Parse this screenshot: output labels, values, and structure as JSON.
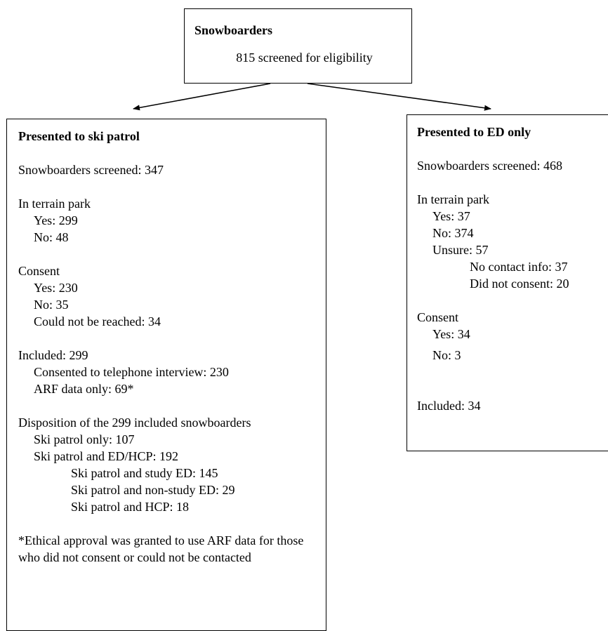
{
  "top": {
    "title": "Snowboarders",
    "screened": "815 screened for eligibility"
  },
  "left": {
    "title": "Presented to ski patrol",
    "screened": "Snowboarders screened: 347",
    "terrain_label": "In terrain park",
    "terrain_yes": "Yes: 299",
    "terrain_no": "No: 48",
    "consent_label": "Consent",
    "consent_yes": "Yes: 230",
    "consent_no": "No: 35",
    "consent_unreached": "Could not be reached: 34",
    "included": "Included: 299",
    "included_phone": "Consented to telephone interview: 230",
    "included_arf": "ARF data only: 69*",
    "disposition_label": "Disposition of the 299 included snowboarders",
    "disp_patrol_only": "Ski patrol only: 107",
    "disp_patrol_ed": "Ski patrol and ED/HCP: 192",
    "disp_study_ed": "Ski patrol and study ED: 145",
    "disp_nonstudy_ed": "Ski patrol and non-study ED: 29",
    "disp_hcp": "Ski patrol and HCP: 18",
    "footnote": "*Ethical approval was granted to use ARF data for those who did not consent or could not be contacted"
  },
  "right": {
    "title": "Presented to ED only",
    "screened": "Snowboarders screened: 468",
    "terrain_label": "In terrain park",
    "terrain_yes": "Yes: 37",
    "terrain_no": "No: 374",
    "terrain_unsure": "Unsure: 57",
    "unsure_no_contact": "No contact info: 37",
    "unsure_no_consent": "Did not consent: 20",
    "consent_label": "Consent",
    "consent_yes": "Yes: 34",
    "consent_no": "No: 3",
    "included": "Included: 34"
  }
}
